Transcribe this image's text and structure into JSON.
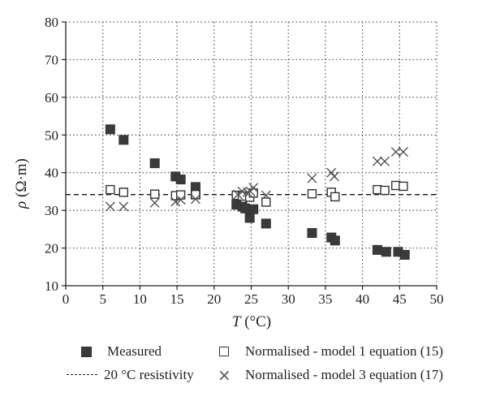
{
  "chart_data": {
    "type": "scatter",
    "xlabel_symbol": "T",
    "xlabel_unit": " (°C)",
    "ylabel_symbol": "ρ",
    "ylabel_unit": " (Ω·m)",
    "xlim": [
      0,
      50
    ],
    "ylim": [
      10,
      80
    ],
    "xticks": [
      0,
      5,
      10,
      15,
      20,
      25,
      30,
      35,
      40,
      45,
      50
    ],
    "yticks": [
      10,
      20,
      30,
      40,
      50,
      60,
      70,
      80
    ],
    "grid": true,
    "reference_line": {
      "name": "20 °C resistivity",
      "y": 34.2
    },
    "series": [
      {
        "name": "Measured",
        "marker": "filled-square",
        "points": [
          [
            6.0,
            51.5
          ],
          [
            7.8,
            48.7
          ],
          [
            12.0,
            42.5
          ],
          [
            14.8,
            39.0
          ],
          [
            15.5,
            38.2
          ],
          [
            17.5,
            36.2
          ],
          [
            17.5,
            34.2
          ],
          [
            23.0,
            31.5
          ],
          [
            23.8,
            31.0
          ],
          [
            24.2,
            30.5
          ],
          [
            24.8,
            28.0
          ],
          [
            25.3,
            30.3
          ],
          [
            27.0,
            26.5
          ],
          [
            33.2,
            24.0
          ],
          [
            35.8,
            22.8
          ],
          [
            36.3,
            22.0
          ],
          [
            42.0,
            19.5
          ],
          [
            43.2,
            19.0
          ],
          [
            44.8,
            19.0
          ],
          [
            45.7,
            18.2
          ]
        ]
      },
      {
        "name": "Normalised - model 1 equation (15)",
        "marker": "open-square",
        "points": [
          [
            6.0,
            35.5
          ],
          [
            7.8,
            34.8
          ],
          [
            12.0,
            34.3
          ],
          [
            14.8,
            33.9
          ],
          [
            15.5,
            34.1
          ],
          [
            17.5,
            34.2
          ],
          [
            23.0,
            34.0
          ],
          [
            23.8,
            33.8
          ],
          [
            24.8,
            33.5
          ],
          [
            25.3,
            34.6
          ],
          [
            27.0,
            32.2
          ],
          [
            33.2,
            34.4
          ],
          [
            35.8,
            34.8
          ],
          [
            36.3,
            33.6
          ],
          [
            42.0,
            35.5
          ],
          [
            43.0,
            35.3
          ],
          [
            44.5,
            36.6
          ],
          [
            45.5,
            36.4
          ]
        ]
      },
      {
        "name": "Normalised - model 3 equation (17)",
        "marker": "x",
        "points": [
          [
            6.0,
            31.0
          ],
          [
            7.8,
            31.0
          ],
          [
            12.0,
            32.0
          ],
          [
            14.8,
            32.3
          ],
          [
            15.5,
            32.8
          ],
          [
            17.5,
            33.0
          ],
          [
            23.2,
            34.2
          ],
          [
            23.8,
            35.0
          ],
          [
            24.5,
            34.8
          ],
          [
            24.9,
            35.0
          ],
          [
            25.3,
            36.0
          ],
          [
            27.0,
            34.0
          ],
          [
            33.2,
            38.5
          ],
          [
            35.8,
            40.0
          ],
          [
            36.2,
            39.0
          ],
          [
            42.0,
            43.0
          ],
          [
            43.0,
            43.0
          ],
          [
            44.5,
            45.5
          ],
          [
            45.5,
            45.5
          ]
        ]
      }
    ]
  },
  "legend": {
    "measured": "Measured",
    "reference": "20 °C resistivity",
    "model1": "Normalised - model 1 equation (15)",
    "model3": "Normalised - model 3 equation (17)"
  },
  "colors": {
    "measured": "#3a3a3a",
    "marker_stroke": "#333333",
    "x_marker": "#555555",
    "grid": "#555555"
  }
}
